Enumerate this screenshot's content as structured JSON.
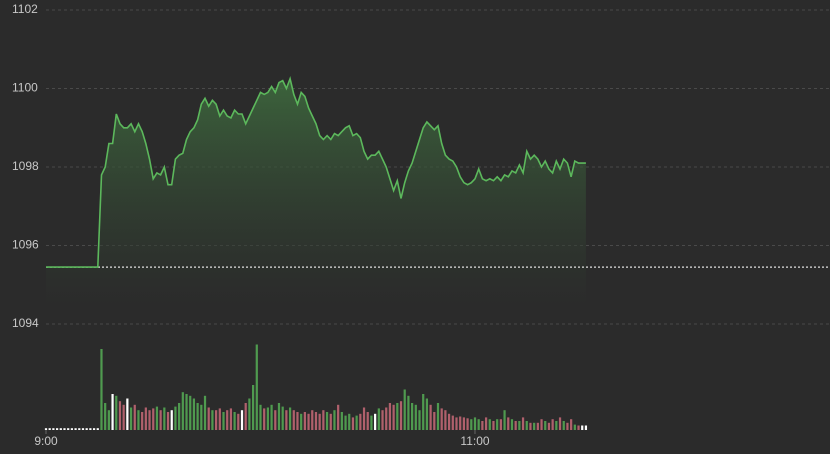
{
  "chart_data": {
    "type": "line",
    "xlim": [
      0,
      212
    ],
    "xticks": [
      {
        "value": 0,
        "label": "9:00"
      },
      {
        "value": 116,
        "label": "11:00"
      }
    ],
    "ylim": [
      1094,
      1102
    ],
    "yticks": [
      1094,
      1096,
      1098,
      1100,
      1102
    ],
    "grid": true,
    "prev_close": 1095.45,
    "series": [
      {
        "color": "#5cb85c",
        "values": [
          1095.45,
          1095.45,
          1095.45,
          1095.45,
          1095.45,
          1095.45,
          1095.45,
          1095.45,
          1095.45,
          1095.45,
          1095.45,
          1095.45,
          1095.45,
          1095.45,
          1095.45,
          1097.8,
          1098.0,
          1098.6,
          1098.6,
          1099.35,
          1099.1,
          1099.0,
          1099.0,
          1099.1,
          1098.9,
          1099.1,
          1098.9,
          1098.6,
          1098.2,
          1097.7,
          1097.85,
          1097.8,
          1098.0,
          1097.55,
          1097.55,
          1098.2,
          1098.3,
          1098.35,
          1098.7,
          1098.9,
          1099.0,
          1099.2,
          1099.6,
          1099.75,
          1099.55,
          1099.7,
          1099.6,
          1099.3,
          1099.45,
          1099.3,
          1099.25,
          1099.45,
          1099.35,
          1099.35,
          1099.1,
          1099.3,
          1099.5,
          1099.7,
          1099.9,
          1099.85,
          1099.9,
          1100.05,
          1099.9,
          1100.15,
          1100.2,
          1100.0,
          1100.25,
          1099.85,
          1099.6,
          1099.9,
          1099.8,
          1099.5,
          1099.3,
          1099.1,
          1098.8,
          1098.7,
          1098.8,
          1098.7,
          1098.85,
          1098.8,
          1098.9,
          1099.0,
          1099.05,
          1098.8,
          1098.85,
          1098.75,
          1098.4,
          1098.2,
          1098.3,
          1098.3,
          1098.4,
          1098.2,
          1098.0,
          1097.7,
          1097.4,
          1097.65,
          1097.2,
          1097.6,
          1097.9,
          1098.1,
          1098.4,
          1098.7,
          1099.0,
          1099.15,
          1099.05,
          1098.95,
          1099.05,
          1098.6,
          1098.3,
          1098.2,
          1098.15,
          1098.0,
          1097.75,
          1097.6,
          1097.55,
          1097.6,
          1097.7,
          1097.95,
          1097.7,
          1097.65,
          1097.7,
          1097.65,
          1097.75,
          1097.65,
          1097.8,
          1097.75,
          1097.9,
          1097.85,
          1098.05,
          1097.85,
          1098.4,
          1098.2,
          1098.3,
          1098.2,
          1098.0,
          1098.15,
          1097.95,
          1097.85,
          1098.15,
          1097.95,
          1098.2,
          1098.1,
          1097.75,
          1098.15,
          1098.1,
          1098.1,
          1098.1
        ]
      }
    ],
    "volume": {
      "ylim": [
        0,
        100
      ],
      "up_color": "#4f9a4f",
      "down_color": "#b0606c",
      "flat_color": "#ffffff",
      "values": [
        2,
        2,
        2,
        2,
        2,
        2,
        2,
        2,
        2,
        2,
        2,
        2,
        2,
        2,
        2,
        90,
        30,
        22,
        40,
        38,
        32,
        28,
        35,
        25,
        28,
        22,
        20,
        25,
        22,
        24,
        26,
        22,
        25,
        20,
        22,
        26,
        30,
        42,
        40,
        38,
        35,
        30,
        28,
        38,
        25,
        22,
        22,
        24,
        20,
        22,
        24,
        20,
        18,
        22,
        30,
        35,
        50,
        95,
        28,
        24,
        25,
        28,
        22,
        30,
        26,
        22,
        25,
        22,
        20,
        18,
        20,
        18,
        22,
        20,
        18,
        22,
        20,
        18,
        22,
        28,
        20,
        16,
        18,
        14,
        16,
        18,
        25,
        20,
        16,
        18,
        24,
        22,
        25,
        30,
        28,
        30,
        32,
        45,
        38,
        30,
        28,
        22,
        40,
        35,
        28,
        20,
        30,
        24,
        22,
        18,
        16,
        14,
        15,
        14,
        13,
        12,
        14,
        12,
        10,
        14,
        12,
        10,
        12,
        12,
        22,
        14,
        12,
        10,
        10,
        14,
        10,
        8,
        8,
        8,
        12,
        10,
        8,
        12,
        10,
        14,
        10,
        8,
        12,
        6,
        5,
        5,
        5
      ]
    }
  }
}
